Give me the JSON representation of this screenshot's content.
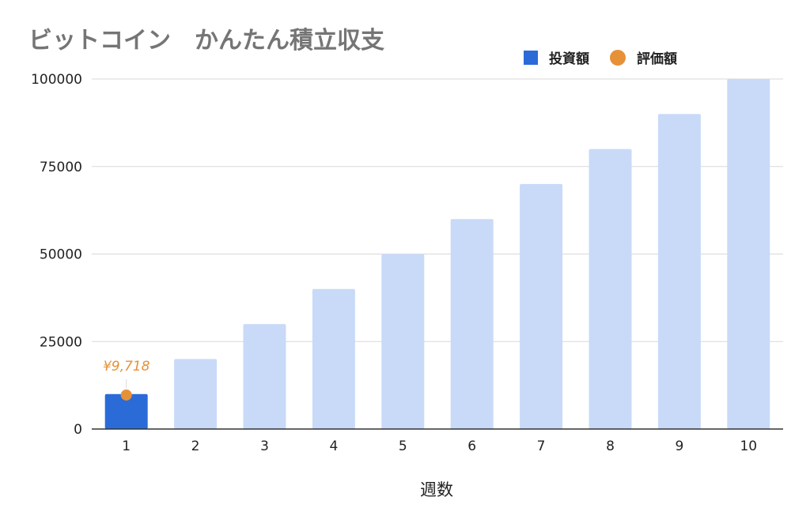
{
  "chart_data": {
    "type": "bar",
    "title": "ビットコイン　かんたん積立収支",
    "xlabel": "週数",
    "ylabel": "",
    "categories": [
      "1",
      "2",
      "3",
      "4",
      "5",
      "6",
      "7",
      "8",
      "9",
      "10"
    ],
    "ylim": [
      0,
      100000
    ],
    "yticks": [
      "0",
      "25000",
      "50000",
      "75000",
      "100000"
    ],
    "grid": true,
    "legend_position": "top-right",
    "series": [
      {
        "name": "投資額",
        "type": "bar",
        "values": [
          10000,
          20000,
          30000,
          40000,
          50000,
          60000,
          70000,
          80000,
          90000,
          100000
        ],
        "highlight_index": 0,
        "color": "#2a6bd8",
        "faded_color": "#c9daf8"
      },
      {
        "name": "評価額",
        "type": "point",
        "points": [
          {
            "category": "1",
            "value": 9718,
            "label": "¥9,718"
          }
        ],
        "color": "#e69138"
      }
    ]
  }
}
